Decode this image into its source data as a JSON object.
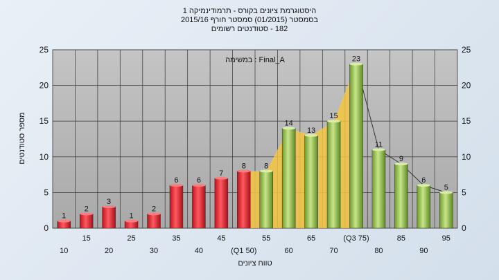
{
  "chart_data": {
    "type": "bar",
    "title": [
      "היסטוגרמת ציונים בקורס - תרמודינמיקה 1",
      "בסמסטר (01/2015) סמסטר חורף 2015/16",
      "182 - סטודנטים רשומים"
    ],
    "annotation": "במשימה : Final_A",
    "xlabel": "טווח ציונים",
    "ylabel": "מספר סטודנטים",
    "ylim": [
      0,
      25
    ],
    "yticks": [
      0,
      5,
      10,
      15,
      20,
      25
    ],
    "grid": true,
    "categories": [
      "10",
      "15",
      "20",
      "25",
      "30",
      "35",
      "40",
      "45",
      "(Q1 50)",
      "55",
      "60",
      "65",
      "70",
      "(Q3 75)",
      "80",
      "85",
      "90",
      "95"
    ],
    "values": [
      1,
      2,
      3,
      1,
      2,
      6,
      6,
      7,
      8,
      8,
      14,
      13,
      15,
      23,
      11,
      9,
      6,
      5
    ],
    "bar_colors": [
      "red",
      "red",
      "red",
      "red",
      "red",
      "red",
      "red",
      "red",
      "red",
      "green",
      "green",
      "green",
      "green",
      "green",
      "green",
      "green",
      "green",
      "green"
    ],
    "area_highlight": {
      "color": "#f5c542",
      "from_category": "(Q1 50)",
      "to_category": "(Q3 75)"
    },
    "colors": {
      "red_bar": "#e0303a",
      "green_bar": "#9cc84f",
      "plot_bg": "#b8b8b8",
      "highlight": "#f5c542"
    }
  }
}
